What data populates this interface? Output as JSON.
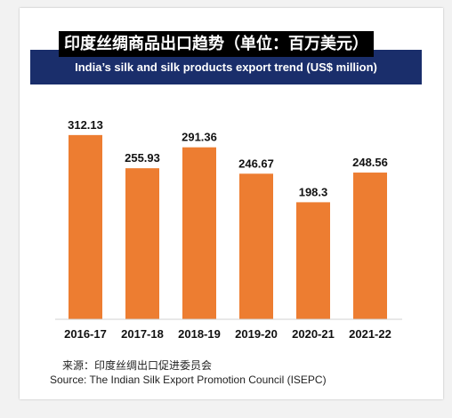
{
  "title_zh": "印度丝绸商品出口趋势（单位：百万美元）",
  "subtitle": "India’s silk and silk products export trend (US$ million)",
  "source_zh": "来源：印度丝绸出口促进委员会",
  "source_en": "Source: The Indian Silk Export Promotion Council (ISEPC)",
  "colors": {
    "bar": "#ed7d31",
    "banner": "#1a2e6b",
    "title_bg": "#000000"
  },
  "chart_data": {
    "type": "bar",
    "title": "印度丝绸商品出口趋势（单位：百万美元）",
    "subtitle": "India’s silk and silk products export trend (US$ million)",
    "categories": [
      "2016-17",
      "2017-18",
      "2018-19",
      "2019-20",
      "2020-21",
      "2021-22"
    ],
    "values": [
      312.13,
      255.93,
      291.36,
      246.67,
      198.3,
      248.56
    ],
    "value_labels": [
      "312.13",
      "255.93",
      "291.36",
      "246.67",
      "198.3",
      "248.56"
    ],
    "xlabel": "",
    "ylabel": "",
    "ylim": [
      0,
      330
    ],
    "grid": false,
    "legend": "none"
  }
}
